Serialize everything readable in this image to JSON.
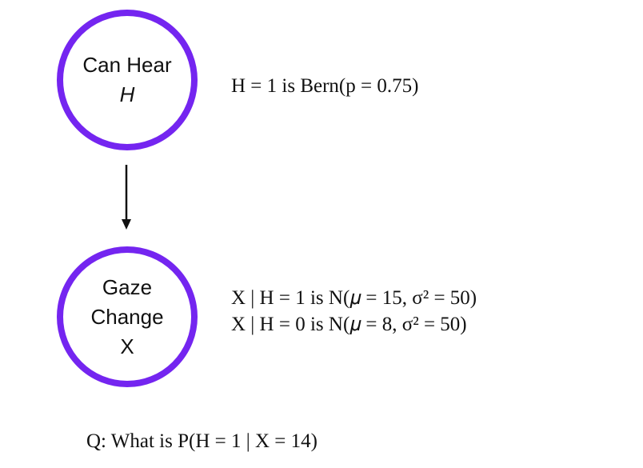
{
  "nodes": {
    "h": {
      "label": "Can Hear",
      "symbol": "H"
    },
    "x": {
      "label_line1": "Gaze",
      "label_line2": "Change",
      "symbol": "X"
    }
  },
  "equations": {
    "h_prior": "H = 1 is Bern(p = 0.75)",
    "x_given_h1": "X | H = 1 is N(𝜇 = 15, σ² = 50)",
    "x_given_h0": "X | H = 0 is N(𝜇 = 8, σ² = 50)"
  },
  "question": "Q: What is P(H = 1 | X = 14)",
  "colors": {
    "node_border": "#7425F0",
    "text": "#111111",
    "arrow": "#111111"
  }
}
